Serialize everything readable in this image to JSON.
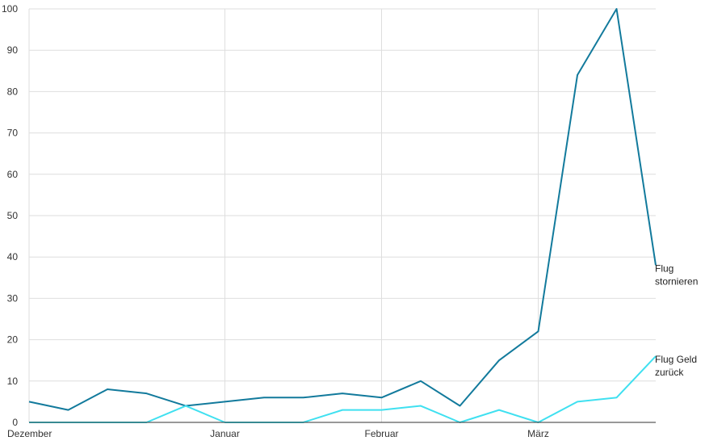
{
  "chart_data": {
    "type": "line",
    "title": "",
    "xlabel": "",
    "ylabel": "",
    "ylim": [
      0,
      100
    ],
    "y_ticks": [
      0,
      10,
      20,
      30,
      40,
      50,
      60,
      70,
      80,
      90,
      100
    ],
    "x": [
      0,
      1,
      2,
      3,
      4,
      5,
      6,
      7,
      8,
      9,
      10,
      11,
      12,
      13,
      14,
      15,
      16
    ],
    "x_ticks": [
      {
        "label": "Dezember",
        "x": 0
      },
      {
        "label": "Januar",
        "x": 5
      },
      {
        "label": "Februar",
        "x": 9
      },
      {
        "label": "März",
        "x": 13
      }
    ],
    "grid": true,
    "legend": "end-of-line labels",
    "series": [
      {
        "name_lines": [
          "Flug",
          "stornieren"
        ],
        "color": "#127a9c",
        "values": [
          5,
          3,
          8,
          7,
          4,
          5,
          6,
          6,
          7,
          6,
          10,
          4,
          15,
          22,
          84,
          100,
          38
        ]
      },
      {
        "name_lines": [
          "Flug Geld",
          "zurück"
        ],
        "color": "#3fe0f0",
        "values": [
          0,
          0,
          0,
          0,
          4,
          0,
          0,
          0,
          3,
          3,
          4,
          0,
          3,
          0,
          5,
          6,
          16
        ]
      }
    ]
  }
}
